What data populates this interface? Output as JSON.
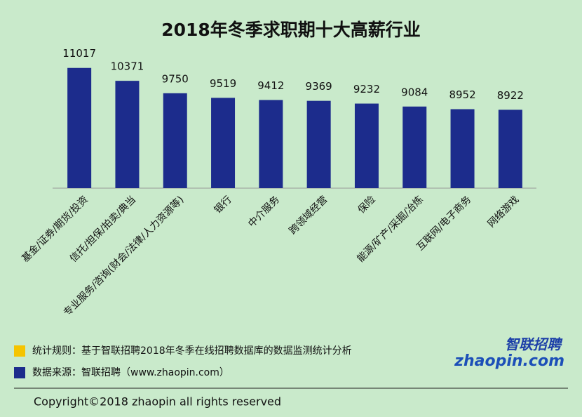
{
  "chart_data": {
    "type": "bar",
    "title": "2018年冬季求职期十大高薪行业",
    "categories": [
      "基金/证券/期货/投资",
      "信托/担保/拍卖/典当",
      "专业服务/咨询(财会/法律/人力资源等)",
      "银行",
      "中介服务",
      "跨领域经营",
      "保险",
      "能源/矿产/采掘/冶炼",
      "互联网/电子商务",
      "网络游戏"
    ],
    "values": [
      11017,
      10371,
      9750,
      9519,
      9412,
      9369,
      9232,
      9084,
      8952,
      8922
    ],
    "color": "#1c2c8c",
    "ylim": [
      5000,
      11500
    ],
    "notes": [
      {
        "text": "统计规则：基于智联招聘2018年冬季在线招聘数据库的数据监测统计分析",
        "color": "#f5c400"
      },
      {
        "text": "数据来源：智联招聘（www.zhaopin.com）",
        "color": "#1c2c8c"
      }
    ],
    "copyright": "Copyright©2018 zhaopin all rights reserved",
    "logo": {
      "name": "智联招聘",
      "site": "zhaopin.com"
    }
  }
}
